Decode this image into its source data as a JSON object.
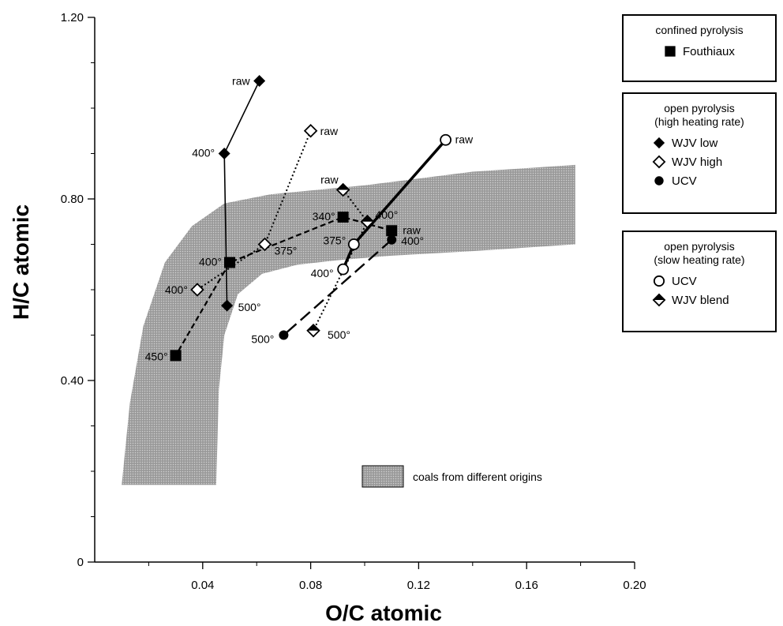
{
  "chart_data": {
    "type": "scatter",
    "xlabel": "O/C atomic",
    "ylabel": "H/C atomic",
    "xlim": [
      0,
      0.2
    ],
    "ylim": [
      0,
      1.2
    ],
    "x_ticks": [
      {
        "value": 0.04,
        "label": "0.04"
      },
      {
        "value": 0.08,
        "label": "0.08"
      },
      {
        "value": 0.12,
        "label": "0.12"
      },
      {
        "value": 0.16,
        "label": "0.16"
      },
      {
        "value": 0.2,
        "label": "0.20"
      }
    ],
    "y_ticks": [
      {
        "value": 0,
        "label": "0"
      },
      {
        "value": 0.4,
        "label": "0.40"
      },
      {
        "value": 0.8,
        "label": "0.80"
      },
      {
        "value": 1.2,
        "label": "1.20"
      }
    ],
    "grid": false,
    "coal_band": {
      "label": "coals from different origins",
      "color": "#a9a9a9",
      "outer_boundary": [
        [
          0.01,
          0.17
        ],
        [
          0.013,
          0.35
        ],
        [
          0.018,
          0.52
        ],
        [
          0.026,
          0.66
        ],
        [
          0.036,
          0.74
        ],
        [
          0.048,
          0.79
        ],
        [
          0.065,
          0.81
        ],
        [
          0.1,
          0.83
        ],
        [
          0.14,
          0.86
        ],
        [
          0.178,
          0.875
        ]
      ],
      "inner_boundary": [
        [
          0.178,
          0.7
        ],
        [
          0.14,
          0.685
        ],
        [
          0.11,
          0.675
        ],
        [
          0.09,
          0.665
        ],
        [
          0.075,
          0.655
        ],
        [
          0.062,
          0.635
        ],
        [
          0.053,
          0.59
        ],
        [
          0.048,
          0.5
        ],
        [
          0.046,
          0.38
        ],
        [
          0.045,
          0.17
        ]
      ]
    },
    "series": [
      {
        "name": "Fouthiaux",
        "group": "confined pyrolysis",
        "marker": "square-filled",
        "line": "dashed",
        "points": [
          {
            "x": 0.11,
            "y": 0.73,
            "label": "raw"
          },
          {
            "x": 0.092,
            "y": 0.76,
            "label": "340°"
          },
          {
            "x": 0.05,
            "y": 0.66,
            "label": "400°"
          },
          {
            "x": 0.03,
            "y": 0.455,
            "label": "450°"
          }
        ]
      },
      {
        "name": "WJV low",
        "group": "open pyrolysis (high heating rate)",
        "marker": "diamond-filled",
        "line": "solid",
        "points": [
          {
            "x": 0.061,
            "y": 1.06,
            "label": "raw"
          },
          {
            "x": 0.048,
            "y": 0.9,
            "label": "400°"
          },
          {
            "x": 0.049,
            "y": 0.565,
            "label": "500°"
          }
        ]
      },
      {
        "name": "WJV high",
        "group": "open pyrolysis (high heating rate)",
        "marker": "diamond-open",
        "line": "dotted",
        "points": [
          {
            "x": 0.08,
            "y": 0.95,
            "label": "raw"
          },
          {
            "x": 0.063,
            "y": 0.7,
            "label": "375°"
          },
          {
            "x": 0.038,
            "y": 0.6,
            "label": "400°"
          }
        ]
      },
      {
        "name": "UCV",
        "group": "open pyrolysis (high heating rate)",
        "marker": "circle-filled",
        "line": "long-dash",
        "points": [
          {
            "x": 0.11,
            "y": 0.71,
            "label": "400°"
          },
          {
            "x": 0.07,
            "y": 0.5,
            "label": "500°"
          }
        ]
      },
      {
        "name": "UCV",
        "group": "open pyrolysis (slow heating rate)",
        "marker": "circle-open",
        "line": "thick-solid",
        "points": [
          {
            "x": 0.13,
            "y": 0.93,
            "label": "raw"
          },
          {
            "x": 0.096,
            "y": 0.7,
            "label": "375°"
          },
          {
            "x": 0.092,
            "y": 0.645,
            "label": "400°"
          }
        ]
      },
      {
        "name": "WJV blend",
        "group": "open pyrolysis (slow heating rate)",
        "marker": "diamond-half",
        "line": "dotted",
        "points": [
          {
            "x": 0.092,
            "y": 0.82,
            "label": "raw"
          },
          {
            "x": 0.101,
            "y": 0.75,
            "label": "400°"
          },
          {
            "x": 0.081,
            "y": 0.51,
            "label": "500°"
          }
        ]
      }
    ]
  },
  "legend": {
    "groups": [
      {
        "title": [
          "confined pyrolysis"
        ],
        "items": [
          {
            "marker": "square-filled",
            "label": "Fouthiaux"
          }
        ]
      },
      {
        "title": [
          "open pyrolysis",
          "(high heating rate)"
        ],
        "items": [
          {
            "marker": "diamond-filled",
            "label": "WJV low"
          },
          {
            "marker": "diamond-open",
            "label": "WJV high"
          },
          {
            "marker": "circle-filled",
            "label": "UCV"
          }
        ]
      },
      {
        "title": [
          "open pyrolysis",
          "(slow heating rate)"
        ],
        "items": [
          {
            "marker": "circle-open",
            "label": "UCV"
          },
          {
            "marker": "diamond-half",
            "label": "WJV blend"
          }
        ]
      }
    ]
  }
}
